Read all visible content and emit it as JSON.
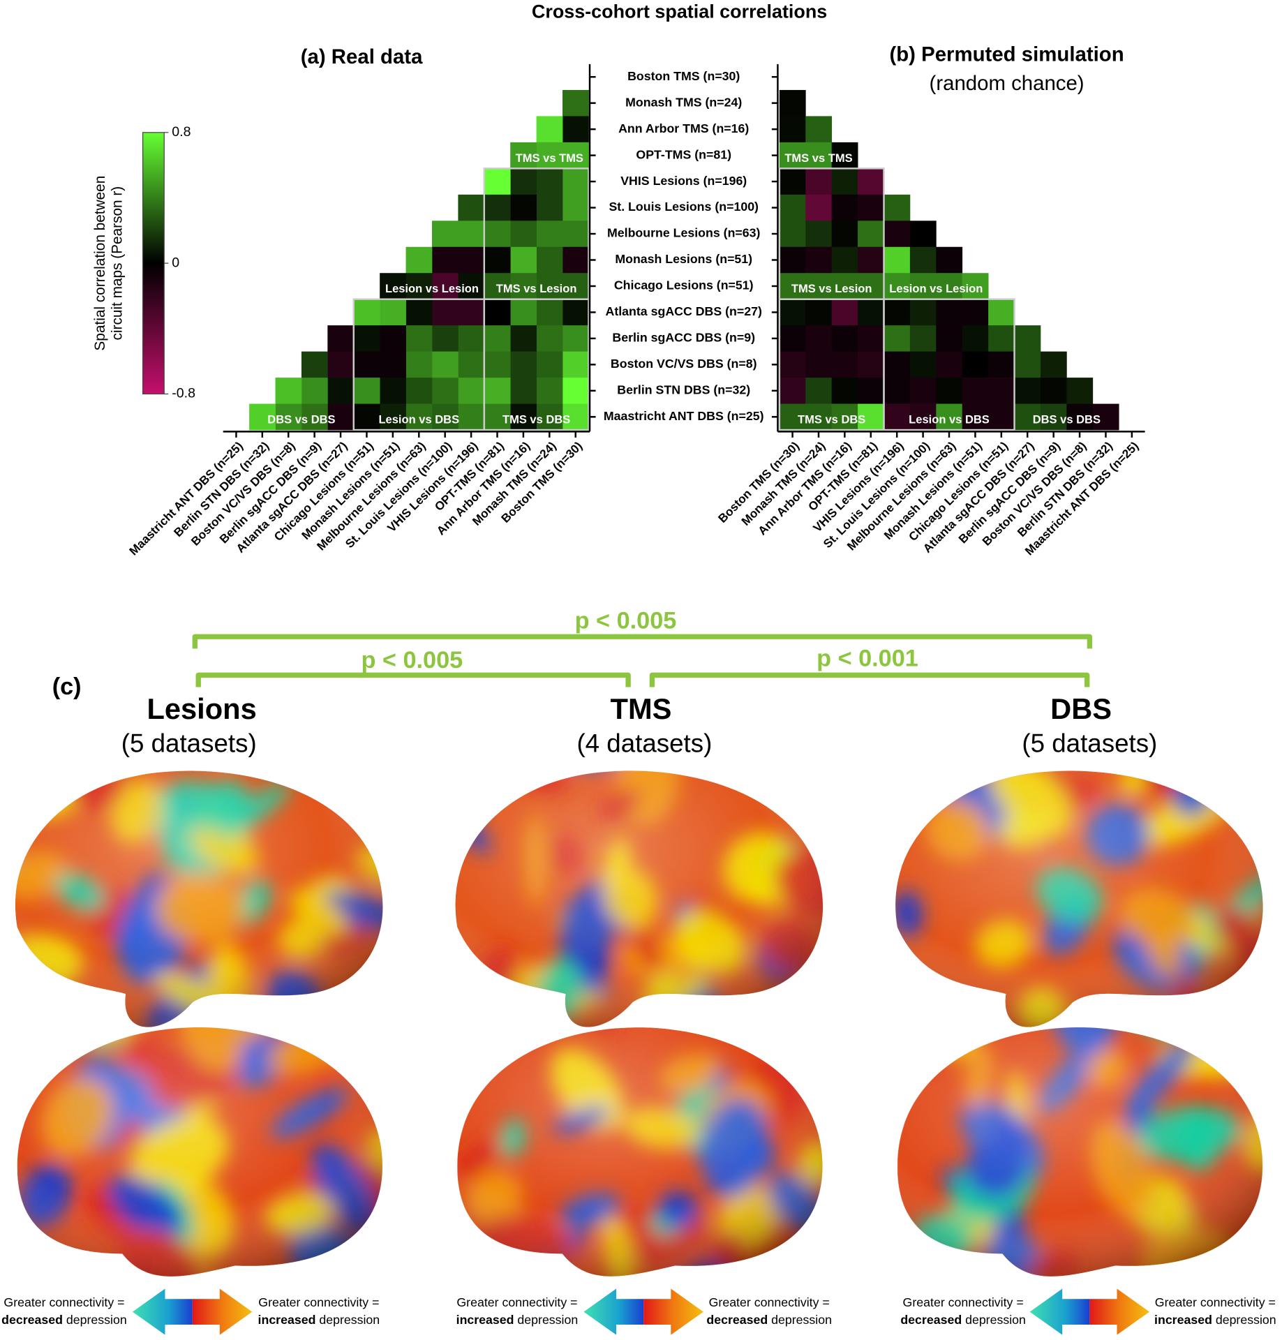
{
  "title": "Cross-cohort spatial correlations",
  "chart_data": [
    {
      "type": "heatmap",
      "title": "(a) Real data",
      "cohorts": [
        "Boston TMS (n=30)",
        "Monash TMS (n=24)",
        "Ann Arbor TMS (n=16)",
        "OPT-TMS (n=81)",
        "VHIS Lesions (n=196)",
        "St. Louis Lesions (n=100)",
        "Melbourne Lesions (n=63)",
        "Monash Lesions (n=51)",
        "Chicago Lesions (n=51)",
        "Atlanta sgACC DBS (n=27)",
        "Berlin sgACC DBS (n=9)",
        "Boston VC/VS DBS (n=8)",
        "Berlin STN DBS (n=32)",
        "Maastricht ANT DBS (n=25)"
      ],
      "values": [
        [
          0.35
        ],
        [
          0.05,
          0.7
        ],
        [
          0.55,
          0.55,
          0.5
        ],
        [
          0.5,
          0.2,
          0.15,
          0.8
        ],
        [
          0.5,
          0.2,
          0.02,
          0.15,
          0.25
        ],
        [
          0.4,
          0.4,
          0.3,
          0.4,
          0.5,
          0.5
        ],
        [
          -0.1,
          0.3,
          0.55,
          0.02,
          -0.1,
          -0.1,
          0.55
        ],
        [
          0.3,
          0.3,
          0.35,
          0.3,
          0.05,
          -0.3,
          0.1,
          0.05
        ],
        [
          0.05,
          0.3,
          0.45,
          0,
          -0.2,
          -0.2,
          0.05,
          0.55,
          0.6
        ],
        [
          0.45,
          0.35,
          0.1,
          0.4,
          0.3,
          0.2,
          0.35,
          -0.05,
          0.05,
          -0.1
        ],
        [
          0.65,
          0.3,
          0.2,
          0.35,
          0.35,
          0.5,
          0.4,
          -0.05,
          -0.05,
          -0.15,
          0.2
        ],
        [
          0.8,
          0.35,
          0.2,
          0.55,
          0.5,
          0.35,
          0.25,
          0.05,
          0.45,
          0.05,
          0.45,
          0.6
        ],
        [
          0.7,
          0.3,
          0.05,
          0.4,
          0.4,
          0.3,
          0.35,
          0.1,
          0.02,
          -0.1,
          0.35,
          0.45,
          0.65
        ]
      ],
      "block_labels": [
        "TMS vs TMS",
        "Lesion vs Lesion",
        "TMS vs Lesion",
        "DBS vs DBS",
        "Lesion vs DBS",
        "TMS vs DBS"
      ],
      "colorbar": {
        "label": [
          "Spatial correlation between",
          "circuit maps (Pearson r)"
        ],
        "lim": [
          -0.8,
          0.8
        ],
        "ticks": [
          -0.8,
          0,
          0.8
        ],
        "colors": {
          "negative": "#c4106c",
          "zero": "#000000",
          "positive": "#66ff33"
        }
      }
    },
    {
      "type": "heatmap",
      "title": "(b) Permuted simulation",
      "subtitle": "(random chance)",
      "cohorts": [
        "Boston TMS (n=30)",
        "Monash TMS (n=24)",
        "Ann Arbor TMS (n=16)",
        "OPT-TMS (n=81)",
        "VHIS Lesions (n=196)",
        "St. Louis Lesions (n=100)",
        "Melbourne Lesions (n=63)",
        "Monash Lesions (n=51)",
        "Chicago Lesions (n=51)",
        "Atlanta sgACC DBS (n=27)",
        "Berlin sgACC DBS (n=9)",
        "Boston VC/VS DBS (n=8)",
        "Berlin STN DBS (n=32)",
        "Maastricht ANT DBS (n=25)"
      ],
      "values": [
        [
          0.02
        ],
        [
          0.03,
          0.3
        ],
        [
          0.45,
          0.45,
          0.02
        ],
        [
          0.02,
          -0.3,
          0.1,
          -0.35
        ],
        [
          0.25,
          -0.4,
          -0.05,
          -0.1,
          0.3
        ],
        [
          0.25,
          0.15,
          0.02,
          0.35,
          -0.1,
          0
        ],
        [
          -0.05,
          -0.1,
          0.1,
          -0.15,
          0.65,
          0.15,
          -0.05
        ],
        [
          0.35,
          0.35,
          0.35,
          0.35,
          0.45,
          0.4,
          0.4,
          0.5
        ],
        [
          0.05,
          0.02,
          -0.3,
          0.05,
          0.02,
          0.1,
          -0.05,
          -0.05,
          0.55
        ],
        [
          -0.05,
          -0.1,
          -0.05,
          -0.1,
          0.35,
          0.2,
          -0.05,
          0.05,
          0.25,
          0.25
        ],
        [
          -0.15,
          -0.1,
          -0.1,
          -0.15,
          -0.05,
          0.05,
          -0.1,
          0,
          -0.05,
          0.25,
          0.1
        ],
        [
          -0.2,
          0.2,
          0.02,
          -0.05,
          -0.05,
          -0.1,
          0.02,
          -0.1,
          -0.1,
          0.05,
          0.02,
          0.1
        ],
        [
          0.3,
          0.3,
          0.35,
          0.7,
          -0.2,
          -0.15,
          0.45,
          -0.1,
          -0.1,
          0.25,
          0.2,
          -0.05,
          -0.1
        ]
      ],
      "block_labels": [
        "TMS vs TMS",
        "Lesion vs Lesion",
        "TMS vs Lesion",
        "DBS vs DBS",
        "Lesion vs DBS",
        "TMS vs DBS"
      ]
    }
  ],
  "panel_c": {
    "label": "(c)",
    "comparisons": [
      "p < 0.005",
      "p < 0.005",
      "p < 0.001"
    ],
    "bracket_color": "#8cc63f",
    "groups": [
      {
        "title": "Lesions",
        "subtitle": "(5 datasets)",
        "legend_left": [
          "Greater connectivity =",
          "decreased",
          "depression"
        ],
        "legend_right": [
          "Greater connectivity =",
          "increased",
          "depression"
        ]
      },
      {
        "title": "TMS",
        "subtitle": "(4 datasets)",
        "legend_left": [
          "Greater connectivity =",
          "increased",
          "depression"
        ],
        "legend_right": [
          "Greater connectivity =",
          "decreased",
          "depression"
        ]
      },
      {
        "title": "DBS",
        "subtitle": "(5 datasets)",
        "legend_left": [
          "Greater connectivity =",
          "decreased",
          "depression"
        ],
        "legend_right": [
          "Greater connectivity =",
          "increased",
          "depression"
        ]
      }
    ]
  }
}
